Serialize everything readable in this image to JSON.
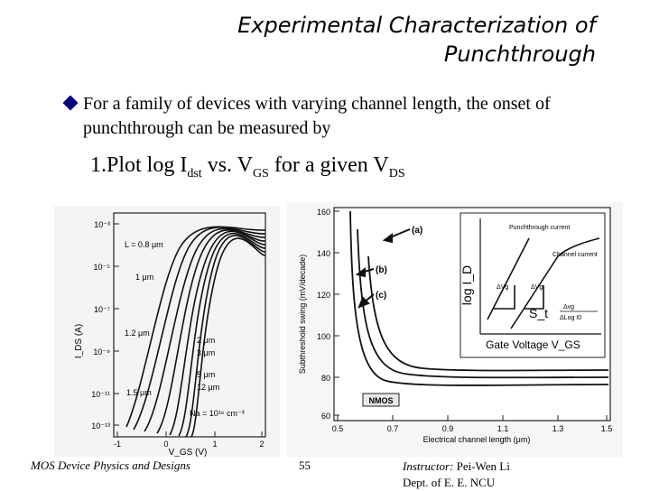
{
  "slide": {
    "title_line1": "Experimental Characterization of",
    "title_line2": "Punchthrough",
    "bullet": "For a family of devices with varying channel length, the onset of punchthrough can be measured by",
    "step_prefix": "1.Plot log I",
    "step_sub1": "dst",
    "step_mid": " vs. V",
    "step_sub2": "GS",
    "step_mid2": " for a given V",
    "step_sub3": "DS"
  },
  "left_figure": {
    "y_axis_label": "I_DS (A)",
    "y_ticks": [
      "10⁻³",
      "10⁻⁵",
      "10⁻⁷",
      "10⁻⁹",
      "10⁻¹¹",
      "10⁻¹³"
    ],
    "x_ticks": [
      "-1",
      "0",
      "1",
      "2"
    ],
    "x_axis_label": "V_GS (V)",
    "curve_labels": [
      "L = 0.8 μm",
      "1 μm",
      "1.2 μm",
      "1.5 μm",
      "2 μm",
      "3 μm",
      "5 μm",
      "12 μm"
    ],
    "doping_note": "Na = 10¹⁶ cm⁻³"
  },
  "right_figure": {
    "y_axis_label": "Subthreshold swing (mV/decade)",
    "y_ticks": [
      "160",
      "140",
      "120",
      "100",
      "80",
      "60"
    ],
    "x_ticks": [
      "0.5",
      "0.7",
      "0.9",
      "1.1",
      "1.3",
      "1.5"
    ],
    "x_axis_label": "Electrical channel length (μm)",
    "curve_tags": [
      "(a)",
      "(b)",
      "(c)"
    ],
    "device_label": "NMOS",
    "inset": {
      "y_label": "log I_D",
      "x_label": "Gate Voltage V_GS",
      "punchthrough_label": "Punchthrough current",
      "channel_label": "Channel current",
      "formula_lhs": "S_t",
      "formula_num": "Δvg",
      "formula_den": "ΔLog I0",
      "delta_labels": [
        "ΔVg",
        "ΔVg"
      ]
    }
  },
  "footer": {
    "course": "MOS Device Physics and Designs",
    "page": "55",
    "instructor_label": "Instructor:",
    "instructor_name": " Pei-Wen Li",
    "dept": "Dept. of E. E. NCU"
  }
}
